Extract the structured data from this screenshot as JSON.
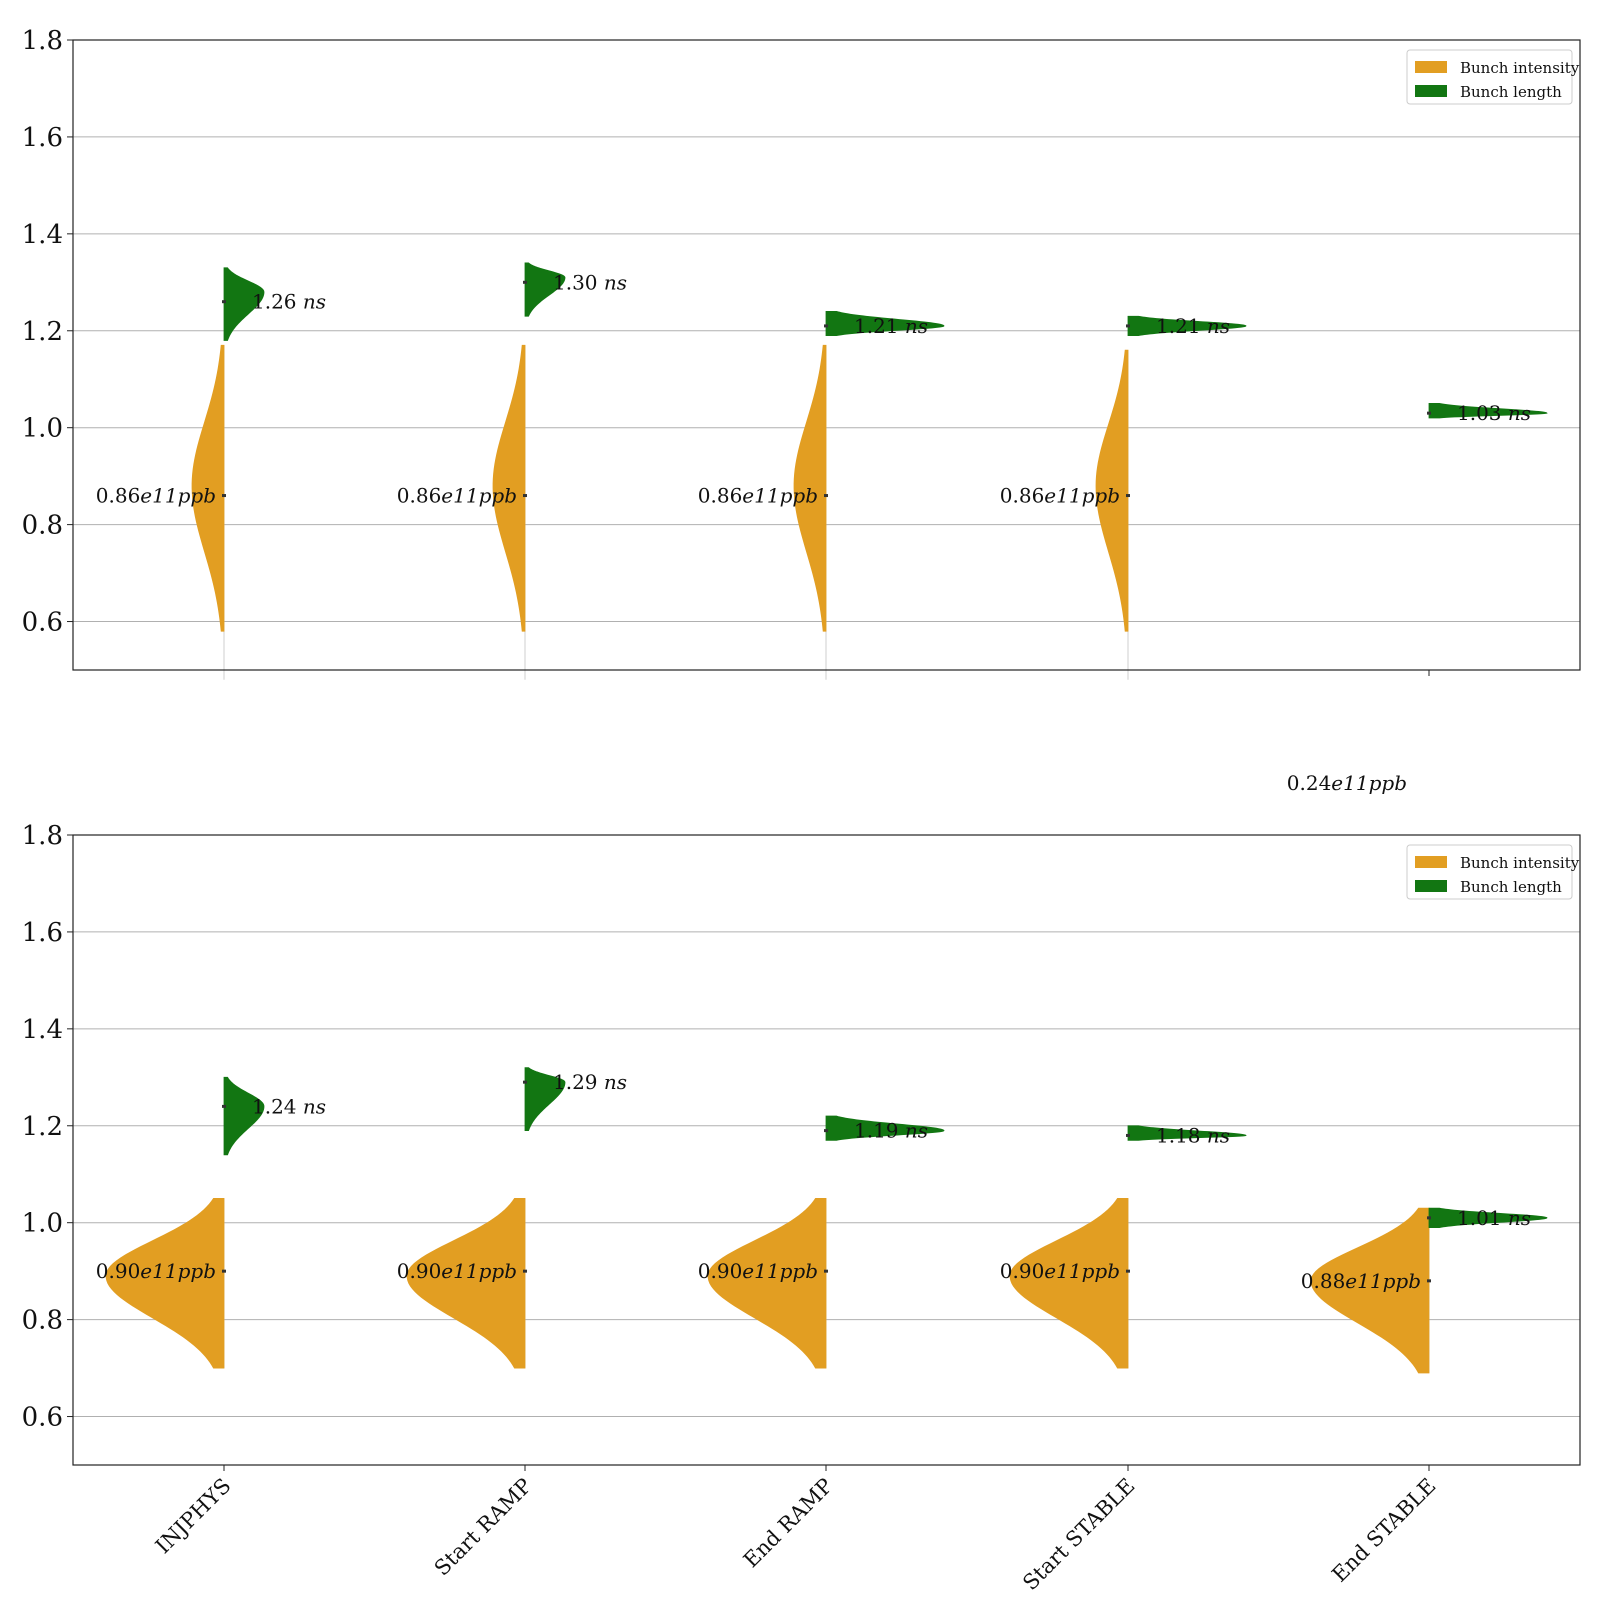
{
  "colors": {
    "intensity": "#E29E22",
    "length": "#127612",
    "grid": "#b0b0b0",
    "axis": "#222222"
  },
  "chart_data": [
    {
      "type": "violin",
      "categories": [
        "INJPHYS",
        "Start RAMP",
        "End RAMP",
        "Start STABLE",
        "End STABLE"
      ],
      "ylim": [
        0.5,
        1.8
      ],
      "yticks": [
        "0.6",
        "0.8",
        "1.0",
        "1.2",
        "1.4",
        "1.6",
        "1.8"
      ],
      "grid": "horizontal",
      "show_xtick_labels": false,
      "legend": {
        "placement": "top-right",
        "entries": [
          "Bunch intensity",
          "Bunch length"
        ]
      },
      "series": [
        {
          "name": "Bunch intensity",
          "side": "left",
          "medians": [
            0.86,
            0.86,
            0.86,
            0.86,
            null
          ],
          "ranges": [
            [
              0.58,
              1.17
            ],
            [
              0.58,
              1.17
            ],
            [
              0.58,
              1.17
            ],
            [
              0.58,
              1.16
            ],
            null
          ],
          "peaks": [
            0.88,
            0.88,
            0.88,
            0.88,
            null
          ],
          "labels": [
            "0.86e11ppb",
            "0.86e11ppb",
            "0.86e11ppb",
            "0.86e11ppb",
            "0.24e11ppb"
          ],
          "label_values": [
            0.86,
            0.86,
            0.86,
            0.86,
            0.24
          ]
        },
        {
          "name": "Bunch length",
          "side": "right",
          "medians": [
            1.26,
            1.3,
            1.21,
            1.21,
            1.03
          ],
          "ranges": [
            [
              1.18,
              1.33
            ],
            [
              1.23,
              1.34
            ],
            [
              1.19,
              1.24
            ],
            [
              1.19,
              1.23
            ],
            [
              1.02,
              1.05
            ]
          ],
          "peaks": [
            1.28,
            1.31,
            1.21,
            1.21,
            1.03
          ],
          "labels": [
            "1.26 ns",
            "1.30 ns",
            "1.21 ns",
            "1.21 ns",
            "1.03 ns"
          ]
        }
      ]
    },
    {
      "type": "violin",
      "categories": [
        "INJPHYS",
        "Start RAMP",
        "End RAMP",
        "Start STABLE",
        "End STABLE"
      ],
      "ylim": [
        0.5,
        1.8
      ],
      "yticks": [
        "0.6",
        "0.8",
        "1.0",
        "1.2",
        "1.4",
        "1.6",
        "1.8"
      ],
      "grid": "horizontal",
      "show_xtick_labels": true,
      "xtick_rotation": -45,
      "legend": {
        "placement": "top-right",
        "entries": [
          "Bunch intensity",
          "Bunch length"
        ]
      },
      "series": [
        {
          "name": "Bunch intensity",
          "side": "left",
          "medians": [
            0.9,
            0.9,
            0.9,
            0.9,
            0.88
          ],
          "ranges": [
            [
              0.7,
              1.05
            ],
            [
              0.7,
              1.05
            ],
            [
              0.7,
              1.05
            ],
            [
              0.7,
              1.05
            ],
            [
              0.69,
              1.03
            ]
          ],
          "peaks": [
            0.89,
            0.89,
            0.89,
            0.89,
            0.88
          ],
          "labels": [
            "0.90e11ppb",
            "0.90e11ppb",
            "0.90e11ppb",
            "0.90e11ppb",
            "0.88e11ppb"
          ],
          "label_values": [
            0.9,
            0.9,
            0.9,
            0.9,
            0.88
          ]
        },
        {
          "name": "Bunch length",
          "side": "right",
          "medians": [
            1.24,
            1.29,
            1.19,
            1.18,
            1.01
          ],
          "ranges": [
            [
              1.14,
              1.3
            ],
            [
              1.19,
              1.32
            ],
            [
              1.17,
              1.22
            ],
            [
              1.17,
              1.2
            ],
            [
              0.99,
              1.03
            ]
          ],
          "peaks": [
            1.24,
            1.29,
            1.19,
            1.18,
            1.01
          ],
          "labels": [
            "1.24 ns",
            "1.29 ns",
            "1.19 ns",
            "1.18 ns",
            "1.01 ns"
          ]
        }
      ]
    }
  ]
}
